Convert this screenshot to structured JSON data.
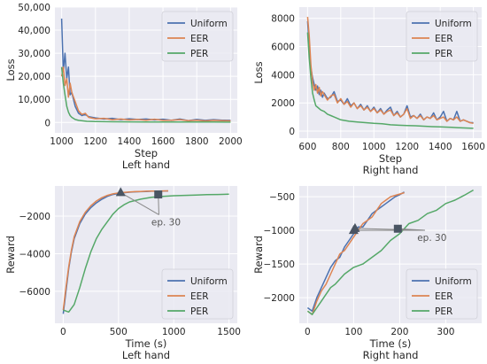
{
  "colors": {
    "Uniform": "#4c72b0",
    "EER": "#dd8452",
    "PER": "#55a868",
    "grid": "#ffffff",
    "axes_bg": "#eaeaf2",
    "marker": "#4a5563",
    "arrow": "#888888"
  },
  "chart_data": [
    {
      "type": "line",
      "title": "",
      "xlabel": "Step",
      "subtitle": "Left hand",
      "ylabel": "Loss",
      "xlim": [
        960,
        2040
      ],
      "ylim": [
        -4500,
        50000
      ],
      "xticks": [
        1000,
        1200,
        1400,
        1600,
        1800,
        2000
      ],
      "xtick_labels": [
        "1000",
        "1200",
        "1400",
        "1600",
        "1800",
        "2000"
      ],
      "yticks": [
        0,
        10000,
        20000,
        30000,
        40000,
        50000
      ],
      "ytick_labels": [
        "0",
        "10,000",
        "20,000",
        "30,000",
        "40,000",
        "50,000"
      ],
      "legend": {
        "position": "upper-right",
        "entries": [
          "Uniform",
          "EER",
          "PER"
        ]
      },
      "series": [
        {
          "name": "Uniform",
          "x": [
            1000,
            1010,
            1020,
            1030,
            1040,
            1050,
            1060,
            1080,
            1100,
            1120,
            1140,
            1160,
            1200,
            1250,
            1300,
            1350,
            1400,
            1450,
            1500,
            1550,
            1600,
            1650,
            1700,
            1750,
            1800,
            1850,
            1900,
            1950,
            2000
          ],
          "y": [
            45000,
            22000,
            30000,
            19000,
            24000,
            12000,
            13000,
            7000,
            4000,
            3000,
            3500,
            2500,
            2000,
            1500,
            1800,
            1200,
            1600,
            1300,
            1500,
            1100,
            1400,
            900,
            1500,
            800,
            1300,
            900,
            1200,
            1000,
            900
          ]
        },
        {
          "name": "EER",
          "x": [
            1000,
            1010,
            1020,
            1030,
            1040,
            1050,
            1060,
            1080,
            1100,
            1120,
            1140,
            1160,
            1200,
            1250,
            1300,
            1350,
            1400,
            1450,
            1500,
            1550,
            1600,
            1650,
            1700,
            1750,
            1800,
            1850,
            1900,
            1950,
            2000
          ],
          "y": [
            20000,
            24000,
            16000,
            19000,
            11000,
            17000,
            13000,
            9000,
            5000,
            3500,
            4000,
            2200,
            1600,
            1800,
            1200,
            1500,
            1100,
            1300,
            1000,
            1400,
            900,
            1000,
            1200,
            800,
            1000,
            700,
            900,
            800,
            700
          ]
        },
        {
          "name": "PER",
          "x": [
            1000,
            1010,
            1020,
            1030,
            1040,
            1050,
            1060,
            1080,
            1100,
            1150,
            1200,
            1300,
            1400,
            1500,
            1600,
            1700,
            1800,
            1900,
            2000
          ],
          "y": [
            24000,
            17000,
            12000,
            7000,
            4500,
            3000,
            2200,
            1300,
            900,
            500,
            400,
            300,
            250,
            200,
            200,
            180,
            180,
            170,
            160
          ]
        }
      ]
    },
    {
      "type": "line",
      "title": "",
      "xlabel": "Step",
      "subtitle": "Right hand",
      "ylabel": "Loss",
      "xlim": [
        550,
        1650
      ],
      "ylim": [
        -500,
        8800
      ],
      "xticks": [
        600,
        800,
        1000,
        1200,
        1400,
        1600
      ],
      "xtick_labels": [
        "600",
        "800",
        "1000",
        "1200",
        "1400",
        "1600"
      ],
      "yticks": [
        0,
        2000,
        4000,
        6000,
        8000
      ],
      "ytick_labels": [
        "0",
        "2000",
        "4000",
        "6000",
        "8000"
      ],
      "legend": {
        "position": "upper-right",
        "entries": [
          "Uniform",
          "EER",
          "PER"
        ]
      },
      "series": [
        {
          "name": "Uniform",
          "x": [
            600,
            610,
            620,
            630,
            640,
            650,
            660,
            670,
            680,
            690,
            700,
            720,
            740,
            760,
            780,
            800,
            820,
            840,
            860,
            880,
            900,
            920,
            940,
            960,
            980,
            1000,
            1020,
            1040,
            1060,
            1080,
            1100,
            1120,
            1140,
            1160,
            1180,
            1200,
            1220,
            1240,
            1260,
            1280,
            1300,
            1320,
            1340,
            1360,
            1380,
            1400,
            1420,
            1440,
            1460,
            1480,
            1500,
            1520,
            1540,
            1560,
            1580,
            1600
          ],
          "y": [
            7800,
            6000,
            4500,
            3800,
            3300,
            2900,
            3200,
            2600,
            2900,
            2400,
            2700,
            2300,
            2400,
            2800,
            2100,
            2200,
            1900,
            2300,
            1800,
            2000,
            1600,
            1900,
            1500,
            1800,
            1400,
            1700,
            1300,
            1600,
            1200,
            1500,
            1700,
            1100,
            1400,
            1000,
            1200,
            1800,
            1000,
            1100,
            900,
            1200,
            800,
            1000,
            900,
            1300,
            800,
            1000,
            1400,
            700,
            900,
            800,
            1400,
            700,
            800,
            700,
            600,
            600
          ]
        },
        {
          "name": "EER",
          "x": [
            600,
            610,
            620,
            630,
            640,
            650,
            660,
            670,
            680,
            690,
            700,
            720,
            740,
            760,
            780,
            800,
            820,
            840,
            860,
            880,
            900,
            920,
            940,
            960,
            980,
            1000,
            1020,
            1040,
            1060,
            1080,
            1100,
            1120,
            1140,
            1160,
            1180,
            1200,
            1220,
            1240,
            1260,
            1280,
            1300,
            1320,
            1340,
            1360,
            1380,
            1400,
            1420,
            1440,
            1460,
            1480,
            1500,
            1520,
            1540,
            1560,
            1580,
            1600
          ],
          "y": [
            8100,
            6800,
            4700,
            3500,
            2900,
            3300,
            2700,
            3100,
            2500,
            2800,
            2600,
            2200,
            2500,
            2600,
            2000,
            2300,
            1900,
            2100,
            1700,
            2000,
            1600,
            1800,
            1500,
            1700,
            1400,
            1600,
            1300,
            1500,
            1200,
            1400,
            1500,
            1100,
            1300,
            1000,
            1200,
            1600,
            900,
            1100,
            900,
            1100,
            800,
            1000,
            900,
            1100,
            800,
            900,
            1000,
            700,
            900,
            800,
            1000,
            700,
            800,
            700,
            600,
            550
          ]
        },
        {
          "name": "PER",
          "x": [
            600,
            610,
            620,
            630,
            640,
            650,
            660,
            680,
            700,
            720,
            740,
            760,
            780,
            800,
            850,
            900,
            950,
            1000,
            1050,
            1100,
            1150,
            1200,
            1250,
            1300,
            1350,
            1400,
            1450,
            1500,
            1550,
            1600
          ],
          "y": [
            7000,
            5200,
            3800,
            2700,
            2200,
            1800,
            1700,
            1500,
            1400,
            1200,
            1100,
            1000,
            900,
            800,
            700,
            650,
            600,
            550,
            520,
            450,
            420,
            400,
            380,
            350,
            320,
            300,
            280,
            250,
            220,
            200
          ]
        }
      ]
    },
    {
      "type": "line",
      "title": "",
      "xlabel": "Time (s)",
      "subtitle": "Left hand",
      "ylabel": "Reward",
      "xlim": [
        -75,
        1575
      ],
      "ylim": [
        -7700,
        -400
      ],
      "xticks": [
        0,
        500,
        1000,
        1500
      ],
      "xtick_labels": [
        "0",
        "500",
        "1000",
        "1500"
      ],
      "yticks": [
        -6000,
        -4000,
        -2000
      ],
      "ytick_labels": [
        "−6000",
        "−4000",
        "−2000"
      ],
      "legend": {
        "position": "lower-right",
        "entries": [
          "Uniform",
          "EER",
          "PER"
        ]
      },
      "annotation": {
        "text": "ep. 30",
        "points": [
          {
            "x": 520,
            "y": -750,
            "marker": "triangle"
          },
          {
            "x": 860,
            "y": -850,
            "marker": "square"
          }
        ],
        "label_at": {
          "x": 930,
          "y": -2400
        }
      },
      "series": [
        {
          "name": "Uniform",
          "x": [
            0,
            25,
            50,
            75,
            100,
            150,
            200,
            250,
            300,
            350,
            400,
            450,
            500,
            550,
            600,
            650,
            700,
            750,
            800,
            850,
            900,
            950
          ],
          "y": [
            -7200,
            -6000,
            -4800,
            -3900,
            -3200,
            -2400,
            -1900,
            -1550,
            -1300,
            -1100,
            -950,
            -850,
            -800,
            -760,
            -730,
            -710,
            -700,
            -690,
            -680,
            -675,
            -670,
            -665
          ]
        },
        {
          "name": "EER",
          "x": [
            0,
            25,
            50,
            75,
            100,
            150,
            200,
            250,
            300,
            350,
            400,
            450,
            500,
            550,
            600,
            650,
            700,
            750,
            800,
            850,
            900,
            950
          ],
          "y": [
            -7000,
            -5800,
            -4700,
            -3800,
            -3100,
            -2300,
            -1800,
            -1450,
            -1200,
            -1020,
            -900,
            -820,
            -770,
            -740,
            -720,
            -700,
            -690,
            -680,
            -672,
            -668,
            -662,
            -660
          ]
        },
        {
          "name": "PER",
          "x": [
            0,
            50,
            100,
            150,
            200,
            250,
            300,
            350,
            400,
            450,
            500,
            550,
            600,
            700,
            800,
            900,
            1000,
            1100,
            1200,
            1300,
            1400,
            1500
          ],
          "y": [
            -7000,
            -7100,
            -6700,
            -5800,
            -4800,
            -3900,
            -3200,
            -2700,
            -2300,
            -1900,
            -1600,
            -1400,
            -1250,
            -1100,
            -1000,
            -950,
            -920,
            -900,
            -880,
            -860,
            -850,
            -840
          ]
        }
      ]
    },
    {
      "type": "line",
      "title": "",
      "xlabel": "Time (s)",
      "subtitle": "Right hand",
      "ylabel": "Reward",
      "xlim": [
        -18,
        378
      ],
      "ylim": [
        -2380,
        -340
      ],
      "xticks": [
        0,
        100,
        200,
        300
      ],
      "xtick_labels": [
        "0",
        "100",
        "200",
        "300"
      ],
      "yticks": [
        -2000,
        -1500,
        -1000,
        -500
      ],
      "ytick_labels": [
        "−2000",
        "−1500",
        "−1000",
        "−500"
      ],
      "legend": {
        "position": "lower-right",
        "entries": [
          "Uniform",
          "EER",
          "PER"
        ]
      },
      "annotation": {
        "text": "ep. 30",
        "points": [
          {
            "x": 100,
            "y": -1000,
            "marker": "triangle"
          },
          {
            "x": 103,
            "y": -970,
            "marker": "triangle"
          },
          {
            "x": 196,
            "y": -975,
            "marker": "square"
          }
        ],
        "label_at": {
          "x": 270,
          "y": -1130
        }
      },
      "series": [
        {
          "name": "Uniform",
          "x": [
            0,
            10,
            20,
            30,
            40,
            50,
            60,
            70,
            80,
            90,
            100,
            110,
            120,
            130,
            140,
            150,
            160,
            170,
            180,
            190,
            200,
            210
          ],
          "y": [
            -2150,
            -2200,
            -2000,
            -1850,
            -1700,
            -1550,
            -1450,
            -1400,
            -1250,
            -1150,
            -1050,
            -950,
            -950,
            -850,
            -750,
            -700,
            -650,
            -600,
            -550,
            -500,
            -470,
            -430
          ]
        },
        {
          "name": "EER",
          "x": [
            0,
            10,
            20,
            30,
            40,
            50,
            60,
            70,
            80,
            90,
            100,
            110,
            120,
            130,
            140,
            150,
            160,
            170,
            180,
            190,
            200,
            210
          ],
          "y": [
            -2200,
            -2250,
            -2050,
            -1900,
            -1800,
            -1650,
            -1500,
            -1350,
            -1300,
            -1200,
            -1100,
            -1000,
            -900,
            -850,
            -800,
            -700,
            -600,
            -550,
            -500,
            -480,
            -460,
            -440
          ]
        },
        {
          "name": "PER",
          "x": [
            0,
            10,
            20,
            30,
            40,
            50,
            60,
            80,
            100,
            120,
            140,
            160,
            180,
            200,
            220,
            240,
            260,
            280,
            300,
            320,
            340,
            360
          ],
          "y": [
            -2200,
            -2250,
            -2150,
            -2050,
            -1950,
            -1850,
            -1800,
            -1650,
            -1550,
            -1500,
            -1400,
            -1300,
            -1150,
            -1050,
            -900,
            -850,
            -750,
            -700,
            -600,
            -550,
            -480,
            -400
          ]
        }
      ]
    }
  ]
}
